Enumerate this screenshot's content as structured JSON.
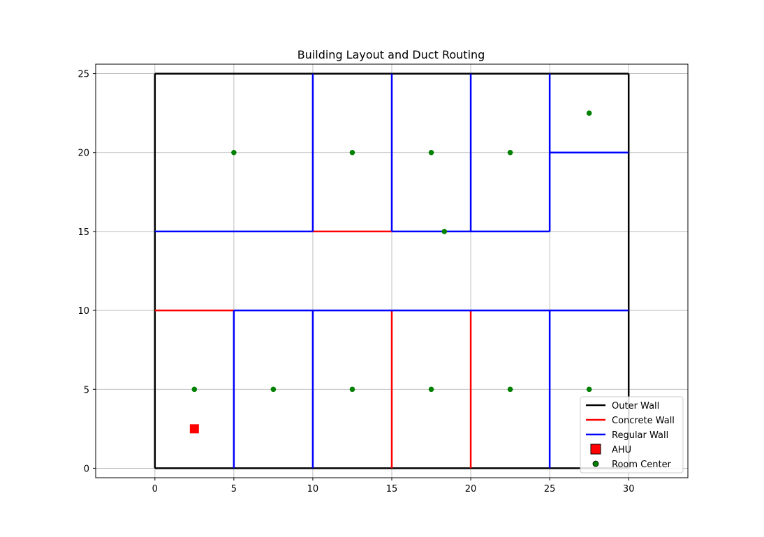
{
  "chart_data": {
    "type": "line",
    "title": "Building Layout and Duct Routing",
    "xlabel": "",
    "ylabel": "",
    "xlim": [
      -3.75,
      33.75
    ],
    "ylim": [
      -0.6,
      25.6
    ],
    "xticks": [
      0,
      5,
      10,
      15,
      20,
      25,
      30
    ],
    "yticks": [
      0,
      5,
      10,
      15,
      20,
      25
    ],
    "grid": true,
    "legend_position": "bottom-right",
    "colors": {
      "outer_wall": "#000000",
      "concrete_wall": "#ff0000",
      "regular_wall": "#0000ff",
      "ahu": "#ff0000",
      "room_center": "#008000",
      "grid": "#b0b0b0"
    },
    "series": [
      {
        "name": "Outer Wall",
        "kind": "line",
        "segments": [
          [
            [
              0,
              0
            ],
            [
              30,
              0
            ]
          ],
          [
            [
              30,
              0
            ],
            [
              30,
              25
            ]
          ],
          [
            [
              30,
              25
            ],
            [
              0,
              25
            ]
          ],
          [
            [
              0,
              25
            ],
            [
              0,
              0
            ]
          ]
        ]
      },
      {
        "name": "Concrete Wall",
        "kind": "line",
        "segments": [
          [
            [
              0,
              10
            ],
            [
              5,
              10
            ]
          ],
          [
            [
              10,
              15
            ],
            [
              15,
              15
            ]
          ],
          [
            [
              15,
              0
            ],
            [
              15,
              10
            ]
          ],
          [
            [
              20,
              0
            ],
            [
              20,
              10
            ]
          ]
        ]
      },
      {
        "name": "Regular Wall",
        "kind": "line",
        "segments": [
          [
            [
              5,
              10
            ],
            [
              30,
              10
            ]
          ],
          [
            [
              0,
              15
            ],
            [
              10,
              15
            ]
          ],
          [
            [
              15,
              15
            ],
            [
              25,
              15
            ]
          ],
          [
            [
              5,
              0
            ],
            [
              5,
              10
            ]
          ],
          [
            [
              10,
              0
            ],
            [
              10,
              10
            ]
          ],
          [
            [
              25,
              0
            ],
            [
              25,
              10
            ]
          ],
          [
            [
              10,
              15
            ],
            [
              10,
              25
            ]
          ],
          [
            [
              15,
              15
            ],
            [
              15,
              25
            ]
          ],
          [
            [
              20,
              15
            ],
            [
              20,
              25
            ]
          ],
          [
            [
              25,
              15
            ],
            [
              25,
              25
            ]
          ],
          [
            [
              25,
              20
            ],
            [
              30,
              20
            ]
          ]
        ]
      },
      {
        "name": "AHU",
        "kind": "square",
        "points": [
          [
            2.5,
            2.5
          ]
        ]
      },
      {
        "name": "Room Center",
        "kind": "dot",
        "points": [
          [
            2.5,
            5
          ],
          [
            7.5,
            5
          ],
          [
            12.5,
            5
          ],
          [
            17.5,
            5
          ],
          [
            22.5,
            5
          ],
          [
            27.5,
            5
          ],
          [
            5,
            20
          ],
          [
            12.5,
            20
          ],
          [
            17.5,
            20
          ],
          [
            22.5,
            20
          ],
          [
            27.5,
            22.5
          ],
          [
            18.33,
            15
          ]
        ]
      }
    ]
  }
}
